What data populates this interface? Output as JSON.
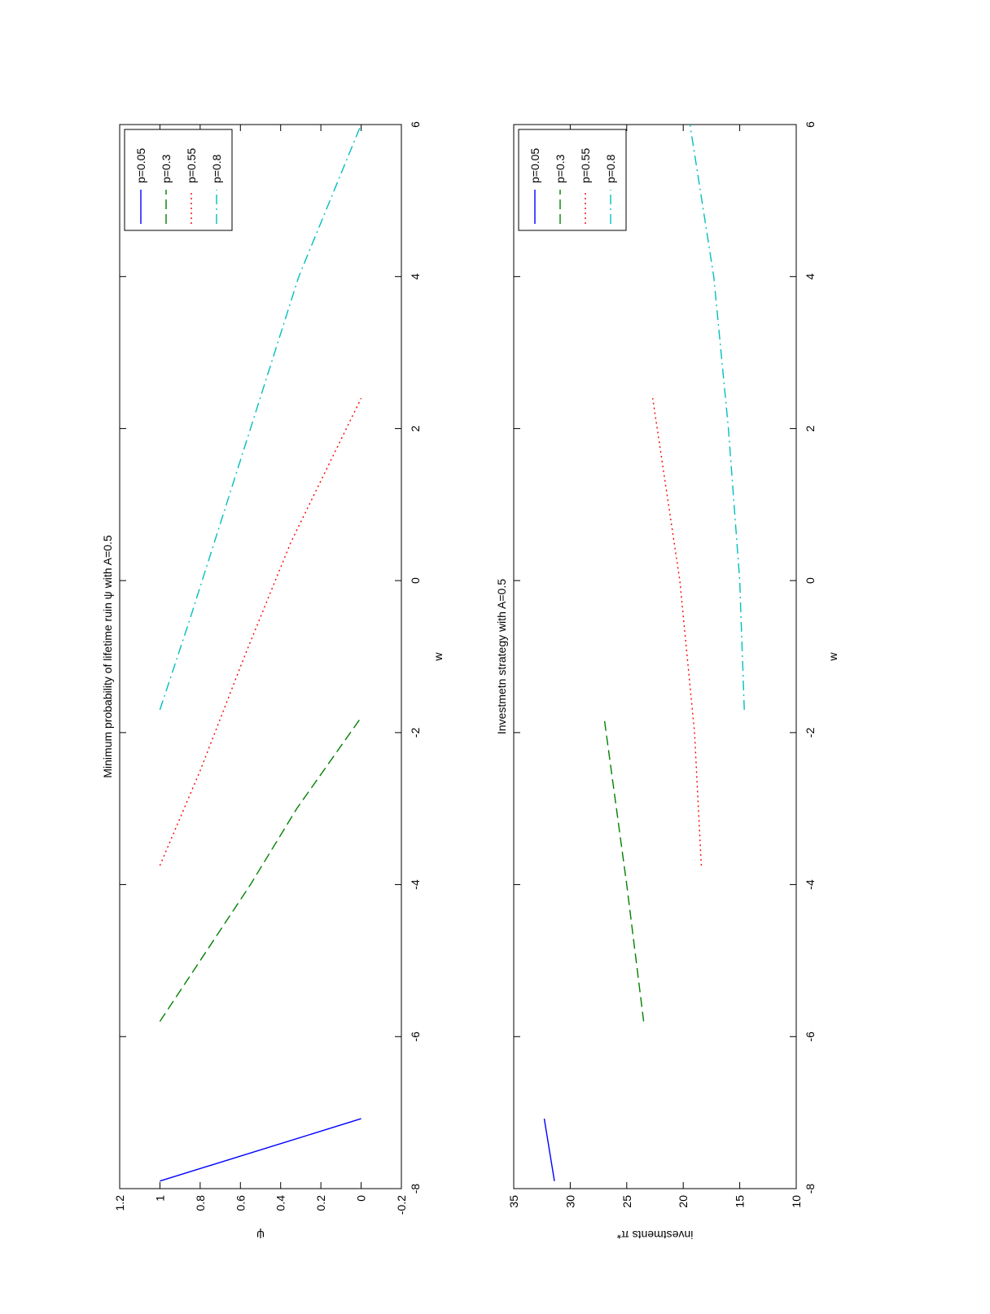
{
  "figure": {
    "orientation": "rotated-90-ccw",
    "colors": {
      "p=0.05": "#0000ff",
      "p=0.3": "#008000",
      "p=0.55": "#ff0000",
      "p=0.8": "#00bfbf",
      "axes": "#000000",
      "background": "#ffffff"
    }
  },
  "chart_data": [
    {
      "type": "line",
      "title": "Minimum probability of lifetime ruin ψ with A=0.5",
      "xlabel": "w",
      "ylabel": "ψ",
      "xlim": [
        -8,
        6
      ],
      "ylim": [
        -0.2,
        1.2
      ],
      "xticks": [
        "-8",
        "-6",
        "-4",
        "-2",
        "0",
        "2",
        "4",
        "6"
      ],
      "yticks": [
        "-0.2",
        "0",
        "0.2",
        "0.4",
        "0.6",
        "0.8",
        "1",
        "1.2"
      ],
      "grid": false,
      "legend_placement": "top-right",
      "series": [
        {
          "name": "p=0.05",
          "style": "solid",
          "x": [
            -7.9,
            -7.08
          ],
          "y": [
            1.0,
            0.0
          ]
        },
        {
          "name": "p=0.3",
          "style": "dashed",
          "x": [
            -5.8,
            -5.0,
            -4.0,
            -3.0,
            -1.8
          ],
          "y": [
            1.0,
            0.8,
            0.55,
            0.32,
            0.0
          ]
        },
        {
          "name": "p=0.55",
          "style": "dotted",
          "x": [
            -3.75,
            -2.5,
            -1.0,
            0.5,
            2.4
          ],
          "y": [
            1.0,
            0.8,
            0.58,
            0.35,
            0.0
          ]
        },
        {
          "name": "p=0.8",
          "style": "dashdot",
          "x": [
            -1.7,
            -0.5,
            1.0,
            2.5,
            4.0,
            6.0
          ],
          "y": [
            1.0,
            0.85,
            0.67,
            0.49,
            0.31,
            0.0
          ]
        }
      ]
    },
    {
      "type": "line",
      "title": "Investmetn strategy with A=0.5",
      "xlabel": "w",
      "ylabel": "investments π*",
      "xlim": [
        -8,
        6
      ],
      "ylim": [
        10,
        35
      ],
      "xticks": [
        "-8",
        "-6",
        "-4",
        "-2",
        "0",
        "2",
        "4",
        "6"
      ],
      "yticks": [
        "10",
        "15",
        "20",
        "25",
        "30",
        "35"
      ],
      "grid": false,
      "legend_placement": "top-right",
      "series": [
        {
          "name": "p=0.05",
          "style": "solid",
          "x": [
            -7.9,
            -7.08
          ],
          "y": [
            31.4,
            32.3
          ]
        },
        {
          "name": "p=0.3",
          "style": "dashed",
          "x": [
            -5.8,
            -4.0,
            -1.8
          ],
          "y": [
            23.5,
            25.0,
            27.0
          ]
        },
        {
          "name": "p=0.55",
          "style": "dotted",
          "x": [
            -3.75,
            -2.0,
            0.0,
            2.4
          ],
          "y": [
            18.4,
            19.0,
            20.3,
            22.7
          ]
        },
        {
          "name": "p=0.8",
          "style": "dashdot",
          "x": [
            -1.7,
            0.0,
            2.0,
            4.0,
            6.0
          ],
          "y": [
            14.6,
            15.0,
            16.0,
            17.3,
            19.4
          ]
        }
      ]
    }
  ]
}
